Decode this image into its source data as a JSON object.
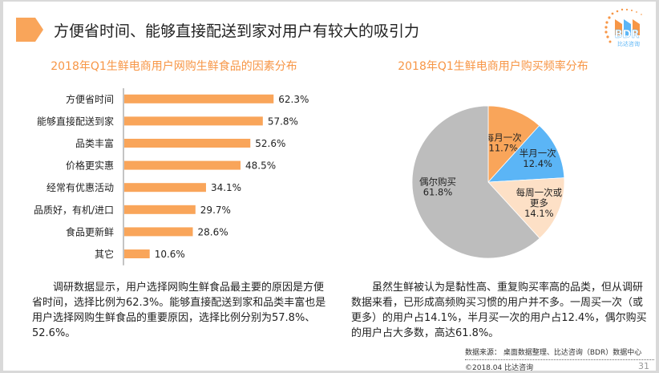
{
  "header": {
    "title": "方便省时间、能够直接配送到家对用户有较大的吸引力",
    "accent_color": "#f79646",
    "logo": {
      "text": "BDR",
      "subtext": "比达咨询",
      "icon": "bdr-logo-icon"
    }
  },
  "chart_data": [
    {
      "type": "bar",
      "orientation": "horizontal",
      "title": "2018年Q1生鲜电商用户网购生鲜食品的因素分布",
      "categories": [
        "方便省时间",
        "能够直接配送到家",
        "品类丰富",
        "价格更实惠",
        "经常有优惠活动",
        "品质好，有机/进口",
        "食品更新鲜",
        "其它"
      ],
      "values": [
        62.3,
        57.8,
        52.6,
        48.5,
        34.1,
        29.7,
        28.6,
        10.6
      ],
      "labels": [
        "62.3%",
        "57.8%",
        "52.6%",
        "48.5%",
        "34.1%",
        "29.7%",
        "28.6%",
        "10.6%"
      ],
      "unit": "%",
      "xlim": [
        0,
        100
      ],
      "grid": false,
      "bar_color": "#f9a55a"
    },
    {
      "type": "pie",
      "title": "2018年Q1生鲜电商用户购买频率分布",
      "slices": [
        {
          "label": "每月一次",
          "value": 11.7,
          "value_label": "11.7%",
          "color": "#f9a55a"
        },
        {
          "label": "半月一次",
          "value": 12.4,
          "value_label": "12.4%",
          "color": "#5bb5f6"
        },
        {
          "label": "每周一次或更多",
          "label_lines": [
            "每周一次或",
            "更多"
          ],
          "value": 14.1,
          "value_label": "14.1%",
          "color": "#fde0c6"
        },
        {
          "label": "偶尔购买",
          "value": 61.8,
          "value_label": "61.8%",
          "color": "#bdbdbd"
        }
      ],
      "start": "top",
      "direction": "clockwise"
    }
  ],
  "text": {
    "left_paragraph": "调研数据显示，用户选择网购生鲜食品最主要的原因是方便省时间，选择比例为62.3%。能够直接配送到家和品类丰富也是用户选择网购生鲜食品的重要原因，选择比例分别为57.8%、52.6%。",
    "right_paragraph": "虽然生鲜被认为是黏性高、重复购买率高的品类，但从调研数据来看，已形成高频购买习惯的用户并不多。一周买一次（或更多）的用户占14.1%，半月买一次的用户占12.4%，偶尔购买的用户占大多数，高达61.8%。"
  },
  "footer": {
    "source": "数据来源：  桌面数据整理、比达咨询（BDR）数据中心",
    "copyright": "©2018.04  比达咨询",
    "page_number": "31"
  }
}
